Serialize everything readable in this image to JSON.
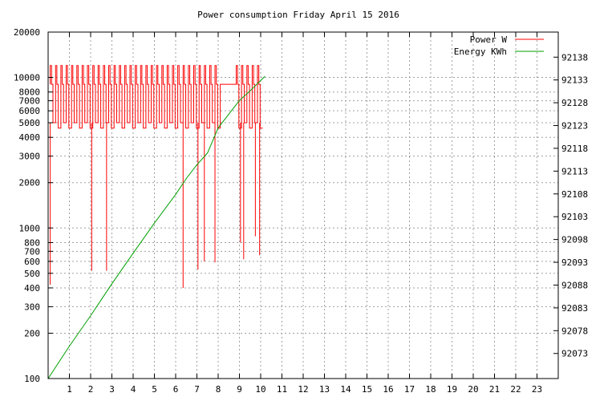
{
  "chart_data": {
    "type": "line",
    "title": "Power consumption Friday April 15 2016",
    "xlabel": "",
    "ylabel": "",
    "y2label": "",
    "x_ticks": [
      "1",
      "2",
      "3",
      "4",
      "5",
      "6",
      "7",
      "8",
      "9",
      "10",
      "11",
      "12",
      "13",
      "14",
      "15",
      "16",
      "17",
      "18",
      "19",
      "20",
      "21",
      "22",
      "23"
    ],
    "y_ticks": [
      "100",
      "200",
      "300",
      "400",
      "500",
      "600",
      "700",
      "800",
      "1000",
      "2000",
      "3000",
      "4000",
      "5000",
      "6000",
      "7000",
      "8000",
      "10000",
      "20000"
    ],
    "y_tick_values": [
      100,
      200,
      300,
      400,
      500,
      600,
      700,
      800,
      1000,
      2000,
      3000,
      4000,
      5000,
      6000,
      7000,
      8000,
      10000,
      20000
    ],
    "y2_ticks": [
      "92073",
      "92078",
      "92083",
      "92088",
      "92093",
      "92098",
      "92103",
      "92108",
      "92113",
      "92118",
      "92123",
      "92128",
      "92133",
      "92138"
    ],
    "y2_tick_values": [
      92073,
      92078,
      92083,
      92088,
      92093,
      92098,
      92103,
      92108,
      92113,
      92118,
      92123,
      92128,
      92133,
      92138
    ],
    "xlim": [
      0,
      24
    ],
    "ylim": [
      100,
      20000
    ],
    "y_scale": "log",
    "y2lim": [
      92067.5,
      92143.5
    ],
    "grid": true,
    "legend_position": "top-right",
    "series": [
      {
        "name": "Power W",
        "axis": "y",
        "color": "#ff0000",
        "pattern": {
          "x_start": 0.1,
          "x_end": 10.1,
          "segment": 0.25,
          "levels": [
            12000,
            9000,
            5000,
            4600
          ],
          "gap": [
            7.9,
            9.0
          ],
          "gap_level": 9000
        },
        "spikes": [
          {
            "x": 0.1,
            "y": 420
          },
          {
            "x": 2.05,
            "y": 520
          },
          {
            "x": 2.75,
            "y": 520
          },
          {
            "x": 6.35,
            "y": 400
          },
          {
            "x": 7.05,
            "y": 530
          },
          {
            "x": 7.35,
            "y": 600
          },
          {
            "x": 7.85,
            "y": 590
          },
          {
            "x": 9.05,
            "y": 800
          },
          {
            "x": 9.2,
            "y": 620
          },
          {
            "x": 9.75,
            "y": 880
          },
          {
            "x": 9.95,
            "y": 660
          }
        ]
      },
      {
        "name": "Energy KWh",
        "axis": "y2",
        "color": "#00a000",
        "x": [
          0.0,
          1.0,
          2.0,
          3.0,
          4.0,
          5.0,
          6.0,
          6.5,
          7.0,
          7.5,
          8.0,
          8.5,
          9.0,
          9.5,
          10.2
        ],
        "values": [
          92067.5,
          92074.6,
          92081.3,
          92088.3,
          92095.0,
          92101.6,
          92107.9,
          92111.4,
          92114.4,
          92117.0,
          92122.5,
          92125.5,
          92128.5,
          92130.6,
          92133.8
        ]
      }
    ]
  }
}
